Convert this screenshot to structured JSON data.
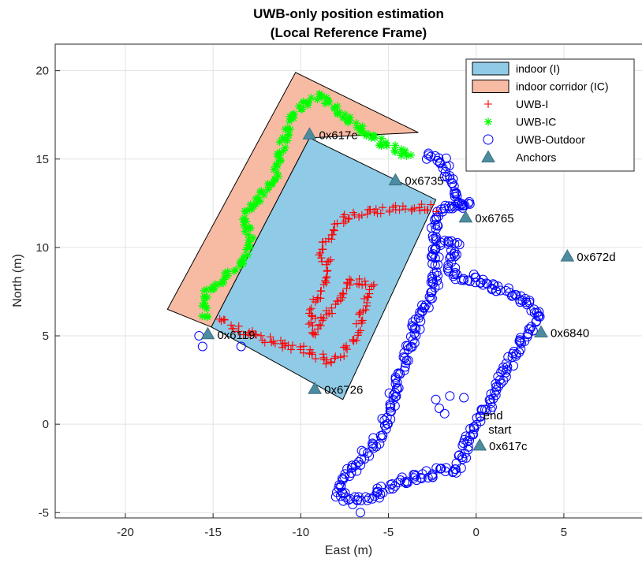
{
  "chart_data": {
    "type": "scatter",
    "title": "UWB-only position estimation",
    "subtitle": "(Local Reference Frame)",
    "xlabel": "East (m)",
    "ylabel": "North (m)",
    "xlim": [
      -24,
      9.5
    ],
    "ylim": [
      -5.3,
      21.5
    ],
    "xticks": [
      -20,
      -15,
      -10,
      -5,
      0,
      5
    ],
    "yticks": [
      -5,
      0,
      5,
      10,
      15,
      20
    ],
    "grid": true,
    "legend_position": "top-right",
    "regions": [
      {
        "name": "indoor corridor (IC)",
        "color": "#F7BBA4",
        "polygon": [
          [
            -17.6,
            6.5
          ],
          [
            -10.3,
            19.9
          ],
          [
            -3.3,
            16.5
          ],
          [
            -9.5,
            16.2
          ],
          [
            -15.1,
            5.5
          ]
        ]
      },
      {
        "name": "indoor (I)",
        "color": "#8FCBE6",
        "polygon": [
          [
            -15.1,
            5.5
          ],
          [
            -9.5,
            16.2
          ],
          [
            -2.3,
            12.7
          ],
          [
            -7.6,
            1.4
          ]
        ]
      }
    ],
    "anchors": {
      "name": "Anchors",
      "color": "#4D8CA0",
      "points": [
        {
          "label": "0x617e",
          "x": -9.5,
          "y": 16.4
        },
        {
          "label": "0x6735",
          "x": -4.6,
          "y": 13.8
        },
        {
          "label": "0x6765",
          "x": -0.6,
          "y": 11.7
        },
        {
          "label": "0x672d",
          "x": 5.2,
          "y": 9.5
        },
        {
          "label": "0x6840",
          "x": 3.7,
          "y": 5.2
        },
        {
          "label": "0x6119",
          "x": -15.3,
          "y": 5.1
        },
        {
          "label": "0x6726",
          "x": -9.2,
          "y": 2.0
        },
        {
          "label": "0x617c",
          "x": 0.2,
          "y": -1.2
        }
      ]
    },
    "annotations": [
      {
        "text": "end",
        "x": 0.4,
        "y": 0.5
      },
      {
        "text": "start",
        "x": 0.7,
        "y": -0.3
      }
    ],
    "series": [
      {
        "name": "UWB-I",
        "marker": "+",
        "color": "#FF0000",
        "path": [
          [
            -14.6,
            6.0
          ],
          [
            -13.5,
            5.3
          ],
          [
            -12.0,
            4.8
          ],
          [
            -10.8,
            4.5
          ],
          [
            -9.6,
            4.2
          ],
          [
            -8.3,
            3.5
          ],
          [
            -7.0,
            4.6
          ],
          [
            -6.6,
            6.0
          ],
          [
            -5.9,
            7.9
          ],
          [
            -7.3,
            8.2
          ],
          [
            -8.0,
            6.8
          ],
          [
            -8.7,
            6.0
          ],
          [
            -9.4,
            5.1
          ],
          [
            -9.3,
            6.7
          ],
          [
            -8.6,
            8.2
          ],
          [
            -8.4,
            9.2
          ],
          [
            -8.9,
            9.7
          ],
          [
            -8.5,
            10.6
          ],
          [
            -7.5,
            11.7
          ],
          [
            -6.2,
            12.0
          ],
          [
            -4.6,
            12.2
          ],
          [
            -3.0,
            12.3
          ],
          [
            -2.2,
            12.2
          ]
        ],
        "spread": 0.2,
        "count": 200
      },
      {
        "name": "UWB-IC",
        "marker": "*",
        "color": "#00FF00",
        "path": [
          [
            -15.5,
            6.0
          ],
          [
            -15.5,
            7.3
          ],
          [
            -14.6,
            8.0
          ],
          [
            -13.5,
            9.0
          ],
          [
            -12.9,
            10.4
          ],
          [
            -13.2,
            11.7
          ],
          [
            -12.3,
            12.9
          ],
          [
            -11.5,
            13.8
          ],
          [
            -11.2,
            15.3
          ],
          [
            -10.7,
            16.7
          ],
          [
            -10.1,
            17.9
          ],
          [
            -9.4,
            18.4
          ],
          [
            -8.8,
            18.6
          ],
          [
            -8.0,
            17.8
          ],
          [
            -7.2,
            17.1
          ],
          [
            -6.0,
            16.3
          ],
          [
            -4.3,
            15.4
          ],
          [
            -3.6,
            15.2
          ]
        ],
        "spread": 0.2,
        "count": 170
      },
      {
        "name": "UWB-Outdoor",
        "marker": "o",
        "color": "#0000FF",
        "path": [
          [
            -2.9,
            15.1
          ],
          [
            -1.9,
            14.9
          ],
          [
            -1.6,
            14.0
          ],
          [
            -1.1,
            12.8
          ],
          [
            -0.4,
            12.4
          ],
          [
            -1.8,
            12.2
          ],
          [
            -2.3,
            11.3
          ],
          [
            -2.4,
            10.0
          ],
          [
            -2.3,
            8.6
          ],
          [
            -2.4,
            7.4
          ],
          [
            -3.3,
            6.2
          ],
          [
            -3.7,
            4.5
          ],
          [
            -4.3,
            3.0
          ],
          [
            -4.7,
            1.6
          ],
          [
            -5.0,
            0.4
          ],
          [
            -5.7,
            -1.0
          ],
          [
            -7.2,
            -2.7
          ],
          [
            -7.9,
            -3.9
          ],
          [
            -7.2,
            -4.3
          ],
          [
            -6.3,
            -4.3
          ],
          [
            -4.6,
            -3.3
          ],
          [
            -3.0,
            -2.8
          ],
          [
            -2.0,
            -2.7
          ],
          [
            -1.1,
            -2.5
          ],
          [
            -0.7,
            -1.7
          ],
          [
            -0.5,
            -0.7
          ],
          [
            0.0,
            0.0
          ],
          [
            0.5,
            0.8
          ],
          [
            1.1,
            2.0
          ],
          [
            1.8,
            3.3
          ],
          [
            2.4,
            4.5
          ],
          [
            3.0,
            5.4
          ],
          [
            3.5,
            6.2
          ],
          [
            3.2,
            6.8
          ],
          [
            2.3,
            7.3
          ],
          [
            0.9,
            7.8
          ],
          [
            -0.3,
            8.3
          ],
          [
            -1.4,
            8.5
          ],
          [
            -1.4,
            9.5
          ],
          [
            -1.1,
            10.2
          ],
          [
            -2.1,
            10.4
          ]
        ],
        "spread": 0.25,
        "count": 420
      }
    ],
    "extra_outdoor_points": [
      [
        -15.8,
        5.0
      ],
      [
        -15.6,
        4.4
      ],
      [
        -13.4,
        4.4
      ],
      [
        -6.6,
        -5.0
      ],
      [
        -2.3,
        1.4
      ],
      [
        -1.5,
        1.6
      ],
      [
        -0.7,
        1.5
      ],
      [
        -2.1,
        0.9
      ],
      [
        -1.8,
        0.6
      ]
    ]
  }
}
